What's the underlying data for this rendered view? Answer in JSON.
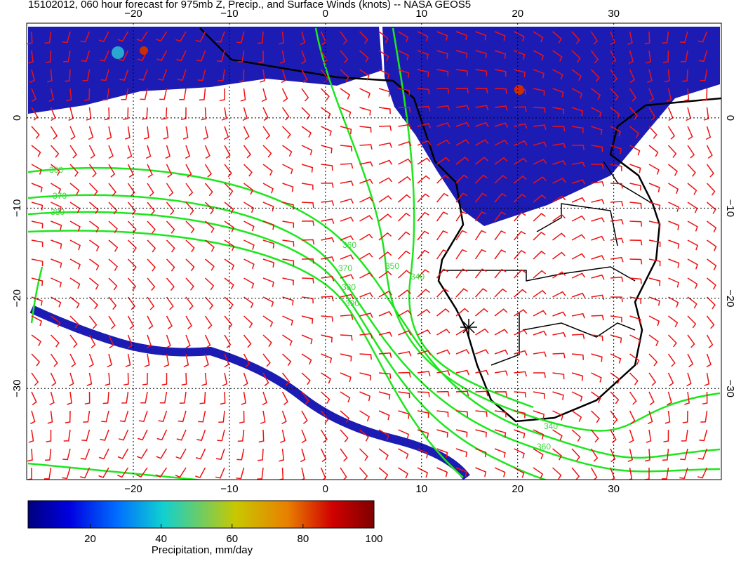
{
  "header": {
    "title": "15102012, 060 hour forecast for 975mb Z, Precip., and Surface Winds (knots) -- NASA GEOS5"
  },
  "map": {
    "lonlim": [
      -31.1,
      41.2
    ],
    "latlim": [
      10.5,
      -40.1
    ],
    "lonticks": [
      {
        "value": -20,
        "label": "−20"
      },
      {
        "value": -10,
        "label": "−10"
      },
      0,
      10,
      20,
      30
    ],
    "latticks": [
      0,
      {
        "value": -10,
        "label": "−10"
      },
      {
        "value": -20,
        "label": "−20"
      },
      {
        "value": -30,
        "label": "−30"
      }
    ],
    "grid": true,
    "contour_labels": [
      360,
      370,
      380,
      360,
      370,
      380,
      390,
      350,
      340,
      340,
      360
    ]
  },
  "colorbar": {
    "label": "Precipitation, mm/day",
    "lim": [
      2.5,
      100
    ],
    "ticks": [
      20,
      40,
      60,
      80,
      100
    ]
  }
}
